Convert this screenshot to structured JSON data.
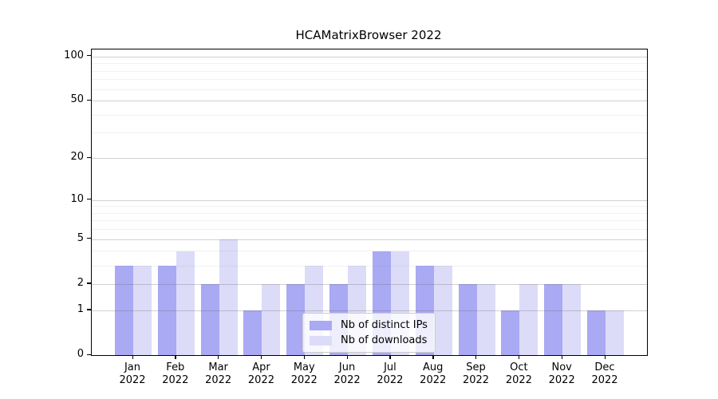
{
  "chart_data": {
    "type": "bar",
    "title": "HCAMatrixBrowser 2022",
    "categories": [
      "Jan",
      "Feb",
      "Mar",
      "Apr",
      "May",
      "Jun",
      "Jul",
      "Aug",
      "Sep",
      "Oct",
      "Nov",
      "Dec"
    ],
    "year": "2022",
    "series": [
      {
        "name": "Nb of distinct IPs",
        "color": "#a9a9f4",
        "values": [
          3,
          3,
          2,
          1,
          2,
          2,
          4,
          3,
          2,
          1,
          2,
          1
        ]
      },
      {
        "name": "Nb of downloads",
        "color": "#dcdcf9",
        "values": [
          3,
          4,
          5,
          2,
          3,
          3,
          4,
          3,
          2,
          2,
          2,
          1
        ]
      }
    ],
    "xlabel": "",
    "ylabel": "",
    "yscale": "log1p",
    "ylim": [
      0,
      100
    ],
    "yticks": [
      0,
      1,
      2,
      5,
      10,
      20,
      50,
      100
    ],
    "minor_yticks": [
      3,
      4,
      6,
      7,
      8,
      9,
      30,
      40,
      60,
      70,
      80,
      90
    ],
    "grid": true,
    "legend_position": "lower center",
    "colors": {
      "spine": "#000000",
      "major_grid": "#cccccc",
      "minor_grid": "#eeeeee",
      "background": "#ffffff"
    }
  }
}
